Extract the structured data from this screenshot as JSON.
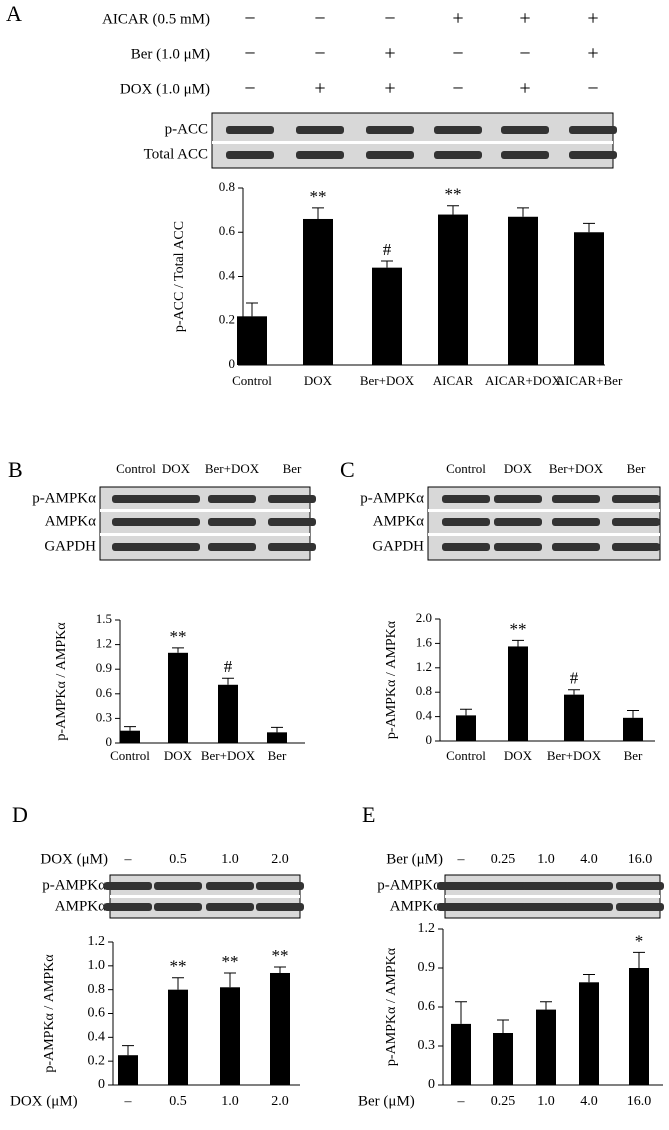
{
  "chart_data": [
    {
      "type": "bar",
      "panel": "A",
      "treatments": [
        {
          "label": "AICAR (0.5 mM)",
          "signs": [
            "−",
            "−",
            "−",
            "+",
            "+",
            "+"
          ]
        },
        {
          "label": "Ber (1.0 μM)",
          "signs": [
            "−",
            "−",
            "+",
            "−",
            "−",
            "+"
          ]
        },
        {
          "label": "DOX (1.0 μM)",
          "signs": [
            "−",
            "+",
            "+",
            "−",
            "+",
            "−"
          ]
        }
      ],
      "blot_rows": [
        "p-ACC",
        "Total ACC"
      ],
      "y_label": "p-ACC / Total ACC",
      "categories": [
        "Control",
        "DOX",
        "Ber+DOX",
        "AICAR",
        "AICAR+DOX",
        "AICAR+Ber"
      ],
      "values": [
        0.22,
        0.66,
        0.44,
        0.68,
        0.67,
        0.6
      ],
      "errors": [
        0.06,
        0.05,
        0.03,
        0.04,
        0.04,
        0.04
      ],
      "significance": [
        null,
        "**",
        "#",
        "**",
        null,
        null
      ],
      "color": "#000000",
      "ylim": [
        0,
        0.8
      ],
      "yticks": [
        0,
        0.2,
        0.4,
        0.6,
        0.8
      ]
    },
    {
      "type": "bar",
      "panel": "B",
      "lanes": [
        "Control",
        "DOX",
        "Ber+DOX",
        "Ber"
      ],
      "blot_rows": [
        "p-AMPKα",
        "AMPKα",
        "GAPDH"
      ],
      "y_label": "p-AMPKα / AMPKα",
      "categories": [
        "Control",
        "DOX",
        "Ber+DOX",
        "Ber"
      ],
      "values": [
        0.15,
        1.1,
        0.71,
        0.13
      ],
      "errors": [
        0.05,
        0.06,
        0.08,
        0.06
      ],
      "significance": [
        null,
        "**",
        "#",
        null
      ],
      "color": "#000000",
      "ylim": [
        0,
        1.5
      ],
      "yticks": [
        0,
        0.3,
        0.6,
        0.9,
        1.2,
        1.5
      ]
    },
    {
      "type": "bar",
      "panel": "C",
      "lanes": [
        "Control",
        "DOX",
        "Ber+DOX",
        "Ber"
      ],
      "blot_rows": [
        "p-AMPKα",
        "AMPKα",
        "GAPDH"
      ],
      "y_label": "p-AMPKα / AMPKα",
      "categories": [
        "Control",
        "DOX",
        "Ber+DOX",
        "Ber"
      ],
      "values": [
        0.42,
        1.55,
        0.76,
        0.38
      ],
      "errors": [
        0.1,
        0.1,
        0.08,
        0.12
      ],
      "significance": [
        null,
        "**",
        "#",
        null
      ],
      "color": "#000000",
      "ylim": [
        0,
        2
      ],
      "yticks": [
        0,
        0.4,
        0.8,
        1.2,
        1.6,
        {
          "value": 2,
          "label": "2.0"
        }
      ]
    },
    {
      "type": "bar",
      "panel": "D",
      "lane_header": "DOX (μM)",
      "lanes": [
        "–",
        "0.5",
        "1.0",
        "2.0"
      ],
      "blot_rows": [
        "p-AMPKα",
        "AMPKα"
      ],
      "y_label": "p-AMPKα / AMPKα",
      "x_label": "DOX (μM)",
      "categories": [
        "–",
        "0.5",
        "1.0",
        "2.0"
      ],
      "values": [
        0.25,
        0.8,
        0.82,
        0.94
      ],
      "errors": [
        0.08,
        0.1,
        0.12,
        0.05
      ],
      "significance": [
        null,
        "**",
        "**",
        "**"
      ],
      "color": "#000000",
      "ylim": [
        0,
        1.2
      ],
      "yticks": [
        0,
        0.2,
        0.4,
        0.6,
        0.8,
        {
          "value": 1,
          "label": "1.0"
        },
        1.2
      ]
    },
    {
      "type": "bar",
      "panel": "E",
      "lane_header": "Ber (μM)",
      "lanes": [
        "–",
        "0.25",
        "1.0",
        "4.0",
        "16.0"
      ],
      "blot_rows": [
        "p-AMPKα",
        "AMPKα"
      ],
      "y_label": "p-AMPKα / AMPKα",
      "x_label": "Ber (μM)",
      "categories": [
        "–",
        "0.25",
        "1.0",
        "4.0",
        "16.0"
      ],
      "values": [
        0.47,
        0.4,
        0.58,
        0.79,
        0.9
      ],
      "errors": [
        0.17,
        0.1,
        0.06,
        0.06,
        0.12
      ],
      "significance": [
        null,
        null,
        null,
        null,
        "*"
      ],
      "color": "#000000",
      "ylim": [
        0,
        1.2
      ],
      "yticks": [
        0,
        0.3,
        0.6,
        0.9,
        1.2
      ]
    }
  ]
}
